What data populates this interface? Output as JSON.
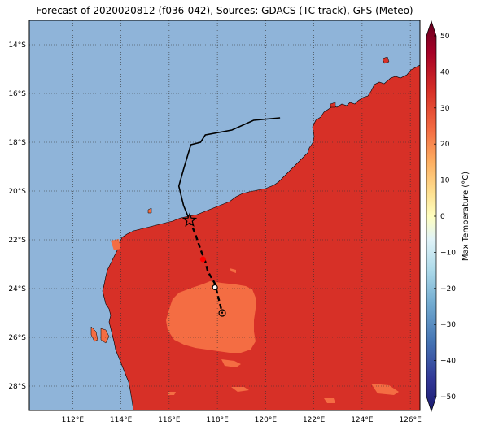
{
  "title": "Forecast of 2020020812 (f036-042), Sources: GDACS (TC track), GFS (Meteo)",
  "map": {
    "lon_range": [
      110.2,
      126.4
    ],
    "lat_range": [
      -29.0,
      -13.0
    ],
    "lon_ticks": [
      112,
      114,
      116,
      118,
      120,
      122,
      124,
      126
    ],
    "lon_tick_labels": [
      "112°E",
      "114°E",
      "116°E",
      "118°E",
      "120°E",
      "122°E",
      "124°E",
      "126°E"
    ],
    "lat_ticks": [
      -14,
      -16,
      -18,
      -20,
      -22,
      -24,
      -26,
      -28
    ],
    "lat_tick_labels": [
      "14°S",
      "16°S",
      "18°S",
      "20°S",
      "22°S",
      "24°S",
      "26°S",
      "28°S"
    ],
    "grid": true,
    "ocean_color": "#8fb4d9",
    "land_hot_color": "#d73027",
    "land_warm_color": "#f46d43",
    "land_warmest_color": "#fdae61"
  },
  "track": {
    "past": [
      [
        120.6,
        -17.0
      ],
      [
        119.5,
        -17.1
      ],
      [
        118.6,
        -17.5
      ],
      [
        117.5,
        -17.7
      ],
      [
        117.3,
        -18.0
      ],
      [
        116.9,
        -18.1
      ],
      [
        116.6,
        -19.1
      ],
      [
        116.4,
        -19.8
      ],
      [
        116.6,
        -20.6
      ],
      [
        116.85,
        -21.2
      ]
    ],
    "forecast": [
      [
        116.85,
        -21.2
      ],
      [
        117.1,
        -21.8
      ],
      [
        117.3,
        -22.4
      ],
      [
        117.5,
        -22.9
      ],
      [
        117.6,
        -23.3
      ],
      [
        117.9,
        -23.8
      ],
      [
        118.2,
        -25.0
      ]
    ],
    "current_position": [
      116.85,
      -21.2
    ],
    "forecast_point_red": [
      117.4,
      -22.8
    ],
    "forecast_point_white": [
      117.9,
      -23.95
    ],
    "forecast_point_circle": [
      118.2,
      -25.0
    ]
  },
  "colorbar": {
    "label": "Max Temperature (°C)",
    "ticks": [
      50,
      40,
      30,
      20,
      10,
      0,
      -10,
      -20,
      -30,
      -40,
      -50
    ],
    "tick_labels": [
      "50",
      "40",
      "30",
      "20",
      "10",
      "0",
      "−10",
      "−20",
      "−30",
      "−40",
      "−50"
    ],
    "colors": [
      "#a50026",
      "#d73027",
      "#f46d43",
      "#fdae61",
      "#fee090",
      "#ffffbf",
      "#e0f3f8",
      "#abd9e9",
      "#74add1",
      "#4575b4",
      "#313695"
    ]
  }
}
